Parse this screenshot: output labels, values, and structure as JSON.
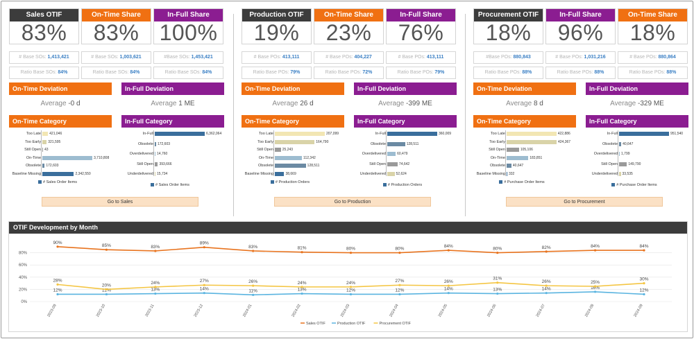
{
  "groups": [
    {
      "kpis": [
        {
          "label": "Sales OTIF",
          "value": "83%",
          "color": "dark"
        },
        {
          "label": "On-Time Share",
          "value": "83%",
          "color": "orange"
        },
        {
          "label": "In-Full Share",
          "value": "100%",
          "color": "purple"
        }
      ],
      "info_row1": [
        {
          "label": "# Base SOs:",
          "value": "1,413,421"
        },
        {
          "label": "# Base SOs:",
          "value": "1,003,621"
        },
        {
          "label": "#Base SOs:",
          "value": "1,453,421"
        }
      ],
      "info_row2": [
        {
          "label": "Ratio Base SOs:",
          "value": "84%"
        },
        {
          "label": "Ratio Base SOs:",
          "value": "84%"
        },
        {
          "label": "Ratio Base SOs:",
          "value": "84%"
        }
      ],
      "deviations": [
        {
          "title": "On-Time Deviation",
          "prefix": "Average",
          "value": "-0 d",
          "color": "orange"
        },
        {
          "title": "In-Full Deviation",
          "prefix": "Average",
          "value": "1 ME",
          "color": "purple"
        }
      ],
      "categories": [
        {
          "title": "On-Time Category",
          "color": "orange",
          "legend": "# Sales Order Items",
          "bars": [
            {
              "label": "Too Late",
              "value": 421046,
              "text": "421,046",
              "color": "#f2e6b3"
            },
            {
              "label": "Too Early",
              "value": 321595,
              "text": "321,595",
              "color": "#d9d3a8"
            },
            {
              "label": "Still Open",
              "value": 43,
              "text": "43",
              "color": "#9a9a9a"
            },
            {
              "label": "On-Time",
              "value": 3710808,
              "text": "3,710,808",
              "color": "#9dbcd0"
            },
            {
              "label": "Obsolete",
              "value": 172603,
              "text": "172,603",
              "color": "#6b8aa3"
            },
            {
              "label": "Baseline Missing",
              "value": 2342550,
              "text": "2,342,550",
              "color": "#3a6e9c"
            }
          ]
        },
        {
          "title": "In-Full Category",
          "color": "purple",
          "legend": "# Sales Order Items",
          "bars": [
            {
              "label": "In-Full",
              "value": 6362064,
              "text": "6,362,064",
              "color": "#3a6e9c"
            },
            {
              "label": "Obsolete",
              "value": 172603,
              "text": "172,603",
              "color": "#6b8aa3"
            },
            {
              "label": "Overdelivered",
              "value": 14760,
              "text": "14,760",
              "color": "#9dbcd0"
            },
            {
              "label": "Still Open",
              "value": 393666,
              "text": "393,666",
              "color": "#9a9a9a"
            },
            {
              "label": "Underdelivered",
              "value": 15734,
              "text": "15,734",
              "color": "#d9d3a8"
            }
          ]
        }
      ],
      "goto": "Go to Sales"
    },
    {
      "kpis": [
        {
          "label": "Production OTIF",
          "value": "19%",
          "color": "dark"
        },
        {
          "label": "On-Time Share",
          "value": "23%",
          "color": "orange"
        },
        {
          "label": "In-Full Share",
          "value": "76%",
          "color": "purple"
        }
      ],
      "info_row1": [
        {
          "label": "# Base POs:",
          "value": "413,111"
        },
        {
          "label": "# Base POs:",
          "value": "404,227"
        },
        {
          "label": "# Base POs:",
          "value": "413,111"
        }
      ],
      "info_row2": [
        {
          "label": "Ratio Base POs:",
          "value": "79%"
        },
        {
          "label": "Ratio Base POs:",
          "value": "72%"
        },
        {
          "label": "Ratio Base POs:",
          "value": "79%"
        }
      ],
      "deviations": [
        {
          "title": "On-Time Deviation",
          "prefix": "Average",
          "value": "26 d",
          "color": "orange"
        },
        {
          "title": "In-Full Deviation",
          "prefix": "Average",
          "value": "-399 ME",
          "color": "purple"
        }
      ],
      "categories": [
        {
          "title": "On-Time Category",
          "color": "orange",
          "legend": "# Production Orders",
          "bars": [
            {
              "label": "Too Late",
              "value": 207099,
              "text": "207,099",
              "color": "#f2e6b3"
            },
            {
              "label": "Too Early",
              "value": 164790,
              "text": "164,790",
              "color": "#d9d3a8"
            },
            {
              "label": "Still Open",
              "value": 25243,
              "text": "25,243",
              "color": "#9a9a9a"
            },
            {
              "label": "On-Time",
              "value": 112342,
              "text": "112,342",
              "color": "#9dbcd0"
            },
            {
              "label": "Obsolete",
              "value": 128511,
              "text": "128,511",
              "color": "#6b8aa3"
            },
            {
              "label": "Baseline Missing",
              "value": 38669,
              "text": "38,669",
              "color": "#3a6e9c"
            }
          ]
        },
        {
          "title": "In-Full Category",
          "color": "purple",
          "legend": "# Production Orders",
          "bars": [
            {
              "label": "In-Full",
              "value": 360009,
              "text": "360,009",
              "color": "#3a6e9c"
            },
            {
              "label": "Obsolete",
              "value": 128511,
              "text": "128,511",
              "color": "#6b8aa3"
            },
            {
              "label": "Overdelivered",
              "value": 60479,
              "text": "60,479",
              "color": "#9dbcd0"
            },
            {
              "label": "Still Open",
              "value": 74642,
              "text": "74,642",
              "color": "#9a9a9a"
            },
            {
              "label": "Underdelivered",
              "value": 52624,
              "text": "52,624",
              "color": "#d9d3a8"
            }
          ]
        }
      ],
      "goto": "Go to Production"
    },
    {
      "kpis": [
        {
          "label": "Procurement OTIF",
          "value": "18%",
          "color": "dark"
        },
        {
          "label": "In-Full Share",
          "value": "96%",
          "color": "purple"
        },
        {
          "label": "On-Time Share",
          "value": "18%",
          "color": "orange"
        }
      ],
      "info_row1": [
        {
          "label": "#Base POs:",
          "value": "880,843"
        },
        {
          "label": "# Base POs:",
          "value": "1,031,216"
        },
        {
          "label": "# Base POs:",
          "value": "880,864"
        }
      ],
      "info_row2": [
        {
          "label": "Ratio Base POs:",
          "value": "88%"
        },
        {
          "label": "Ratio Base POs:",
          "value": "88%"
        },
        {
          "label": "Ratio Base POs:",
          "value": "88%"
        }
      ],
      "deviations": [
        {
          "title": "On-Time Deviation",
          "prefix": "Average",
          "value": "8 d",
          "color": "orange"
        },
        {
          "title": "In-Full Deviation",
          "prefix": "Average",
          "value": "-329 ME",
          "color": "purple"
        }
      ],
      "categories": [
        {
          "title": "On-Time Category",
          "color": "orange",
          "legend": "# Purchase Order Items",
          "bars": [
            {
              "label": "Too Late",
              "value": 422886,
              "text": "422,886",
              "color": "#f2e6b3"
            },
            {
              "label": "Too Early",
              "value": 424367,
              "text": "424,367",
              "color": "#d9d3a8"
            },
            {
              "label": "Still Open",
              "value": 105106,
              "text": "105,106",
              "color": "#9a9a9a"
            },
            {
              "label": "On-Time",
              "value": 183851,
              "text": "183,851",
              "color": "#9dbcd0"
            },
            {
              "label": "Obsolete",
              "value": 40647,
              "text": "40,647",
              "color": "#6b8aa3"
            },
            {
              "label": "Baseline Missing",
              "value": 332,
              "text": "332",
              "color": "#3a6e9c"
            }
          ]
        },
        {
          "title": "In-Full Category",
          "color": "purple",
          "legend": "# Purchase Order Items",
          "bars": [
            {
              "label": "In-Full",
              "value": 951540,
              "text": "951,540",
              "color": "#3a6e9c"
            },
            {
              "label": "Obsolete",
              "value": 40647,
              "text": "40,647",
              "color": "#6b8aa3"
            },
            {
              "label": "Overdelivered",
              "value": 1799,
              "text": "1,799",
              "color": "#9dbcd0"
            },
            {
              "label": "Still Open",
              "value": 149790,
              "text": "149,790",
              "color": "#9a9a9a"
            },
            {
              "label": "Underdelivered",
              "value": 33535,
              "text": "33,535",
              "color": "#d9d3a8"
            }
          ]
        }
      ],
      "goto": "Go to Procurement"
    }
  ],
  "colors": {
    "dark": "#3c3c3c",
    "orange": "#f07012",
    "purple": "#8b1d91"
  },
  "monthly": {
    "title": "OTIF Development by Month"
  },
  "chart_data": {
    "type": "line",
    "categories": [
      "2023-09",
      "2023-10",
      "2023-11",
      "2023-12",
      "2024-01",
      "2024-02",
      "2024-03",
      "2024-04",
      "2024-05",
      "2024-06",
      "2024-07",
      "2024-08",
      "2024-09"
    ],
    "ylim": [
      0,
      100
    ],
    "yticks": [
      "0%",
      "20%",
      "40%",
      "60%",
      "80%"
    ],
    "series": [
      {
        "name": "Sales OTIF",
        "color": "#e8731e",
        "values": [
          90,
          85,
          83,
          89,
          83,
          81,
          80,
          80,
          84,
          80,
          82,
          84,
          84
        ]
      },
      {
        "name": "Production OTIF",
        "color": "#5ab4e0",
        "values": [
          12,
          12,
          13,
          14,
          11,
          13,
          12,
          12,
          14,
          13,
          14,
          16,
          12
        ]
      },
      {
        "name": "Procurement OTIF",
        "color": "#f4c542",
        "values": [
          28,
          20,
          24,
          27,
          26,
          24,
          24,
          27,
          26,
          31,
          26,
          25,
          30
        ]
      }
    ],
    "legend": "bottom",
    "grid": true
  }
}
